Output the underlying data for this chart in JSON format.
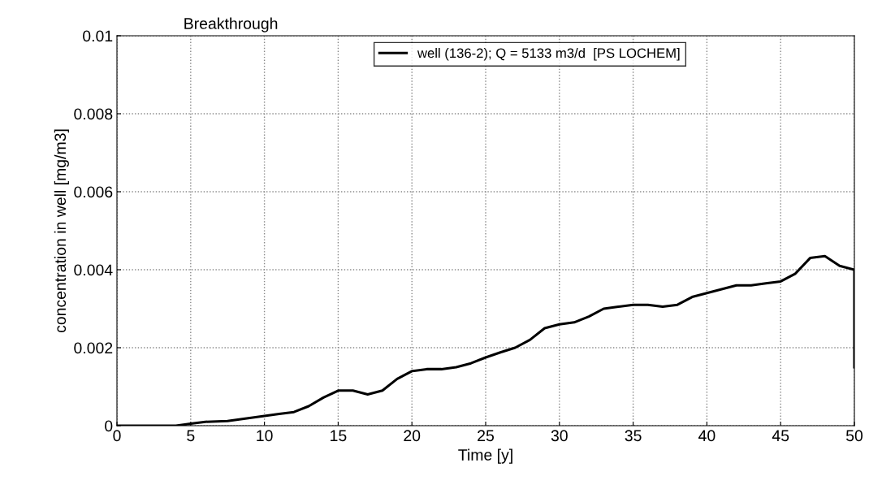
{
  "chart_data": {
    "type": "line",
    "title": "Breakthrough",
    "xlabel": "Time [y]",
    "ylabel": "concentration in well [mg/m3]",
    "x": [
      0,
      4,
      5,
      6,
      7.5,
      9,
      10,
      11,
      12,
      13,
      14,
      15,
      16,
      17,
      18,
      19,
      20,
      21,
      22,
      23,
      24,
      25,
      26,
      27,
      28,
      29,
      30,
      31,
      32,
      33,
      34,
      35,
      36,
      37,
      38,
      39,
      40,
      41,
      42,
      43,
      44,
      45,
      46,
      47,
      48,
      49,
      50,
      50
    ],
    "series": [
      {
        "name": "well (136-2); Q = 5133 m3/d  [PS LOCHEM]",
        "color": "#000000",
        "values": [
          0,
          0,
          5e-05,
          0.0001,
          0.00012,
          0.0002,
          0.00025,
          0.0003,
          0.00035,
          0.0005,
          0.00072,
          0.0009,
          0.0009,
          0.0008,
          0.0009,
          0.0012,
          0.0014,
          0.00145,
          0.00145,
          0.0015,
          0.0016,
          0.00175,
          0.00188,
          0.002,
          0.0022,
          0.0025,
          0.0026,
          0.00265,
          0.0028,
          0.003,
          0.00305,
          0.0031,
          0.0031,
          0.00305,
          0.0031,
          0.0033,
          0.0034,
          0.0035,
          0.0036,
          0.0036,
          0.00365,
          0.0037,
          0.0039,
          0.0043,
          0.00435,
          0.0041,
          0.004,
          0.0015
        ]
      }
    ],
    "xlim": [
      0,
      50
    ],
    "xticks": [
      0,
      5,
      10,
      15,
      20,
      25,
      30,
      35,
      40,
      45,
      50
    ],
    "ylim": [
      0,
      0.01
    ],
    "yticks": [
      0,
      0.002,
      0.004,
      0.006,
      0.008,
      0.01
    ],
    "grid": true,
    "legend": "top",
    "marker": "none",
    "line_style": "solid"
  }
}
